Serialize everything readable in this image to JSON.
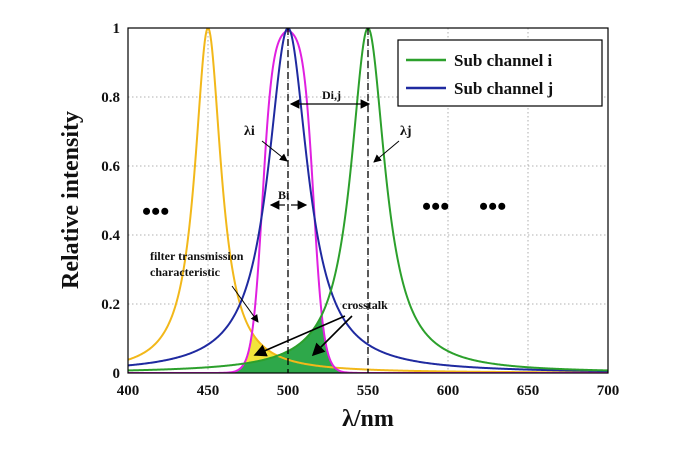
{
  "chart_data": {
    "type": "line",
    "title": "",
    "xlabel": "λ/nm",
    "ylabel": "Relative intensity",
    "xlim": [
      400,
      700
    ],
    "ylim": [
      0,
      1
    ],
    "x_ticks": [
      "400",
      "450",
      "500",
      "550",
      "600",
      "650",
      "700"
    ],
    "y_ticks": [
      "0",
      "0.2",
      "0.4",
      "0.6",
      "0.8",
      "1"
    ],
    "grid": true,
    "legend_position": "top-right",
    "series": [
      {
        "name": "",
        "role": "neighbouring channel",
        "color": "#f2b81a",
        "center": 450,
        "fwhm": 20,
        "peak": 1
      },
      {
        "name": "Sub channel j",
        "color": "#1f2aa0",
        "center": 500,
        "fwhm": 30,
        "peak": 1
      },
      {
        "name": "Sub channel i",
        "color": "#2ca02c",
        "center": 550,
        "fwhm": 26,
        "peak": 1
      },
      {
        "name": "filter transmission characteristic",
        "role": "filter",
        "color": "#e020e0",
        "center": 500,
        "passband_halfwidth": 16,
        "edge_steepness": 3.2,
        "peak": 1
      }
    ],
    "crosstalk_fill_colors": {
      "yellow": "#f2e43a",
      "green": "#2ea84a"
    },
    "dotted_colors": {
      "axis": "#000000"
    },
    "vlines": [
      500,
      550
    ],
    "annotations": {
      "lambda_i": "λi",
      "lambda_j": "λj",
      "b_label": "Bi",
      "d_label": "Di,j",
      "filter_label_line1": "filter transmission",
      "filter_label_line2": "characteristic",
      "crosstalk_label": "crosstalk",
      "ellipsis": "•••"
    }
  }
}
